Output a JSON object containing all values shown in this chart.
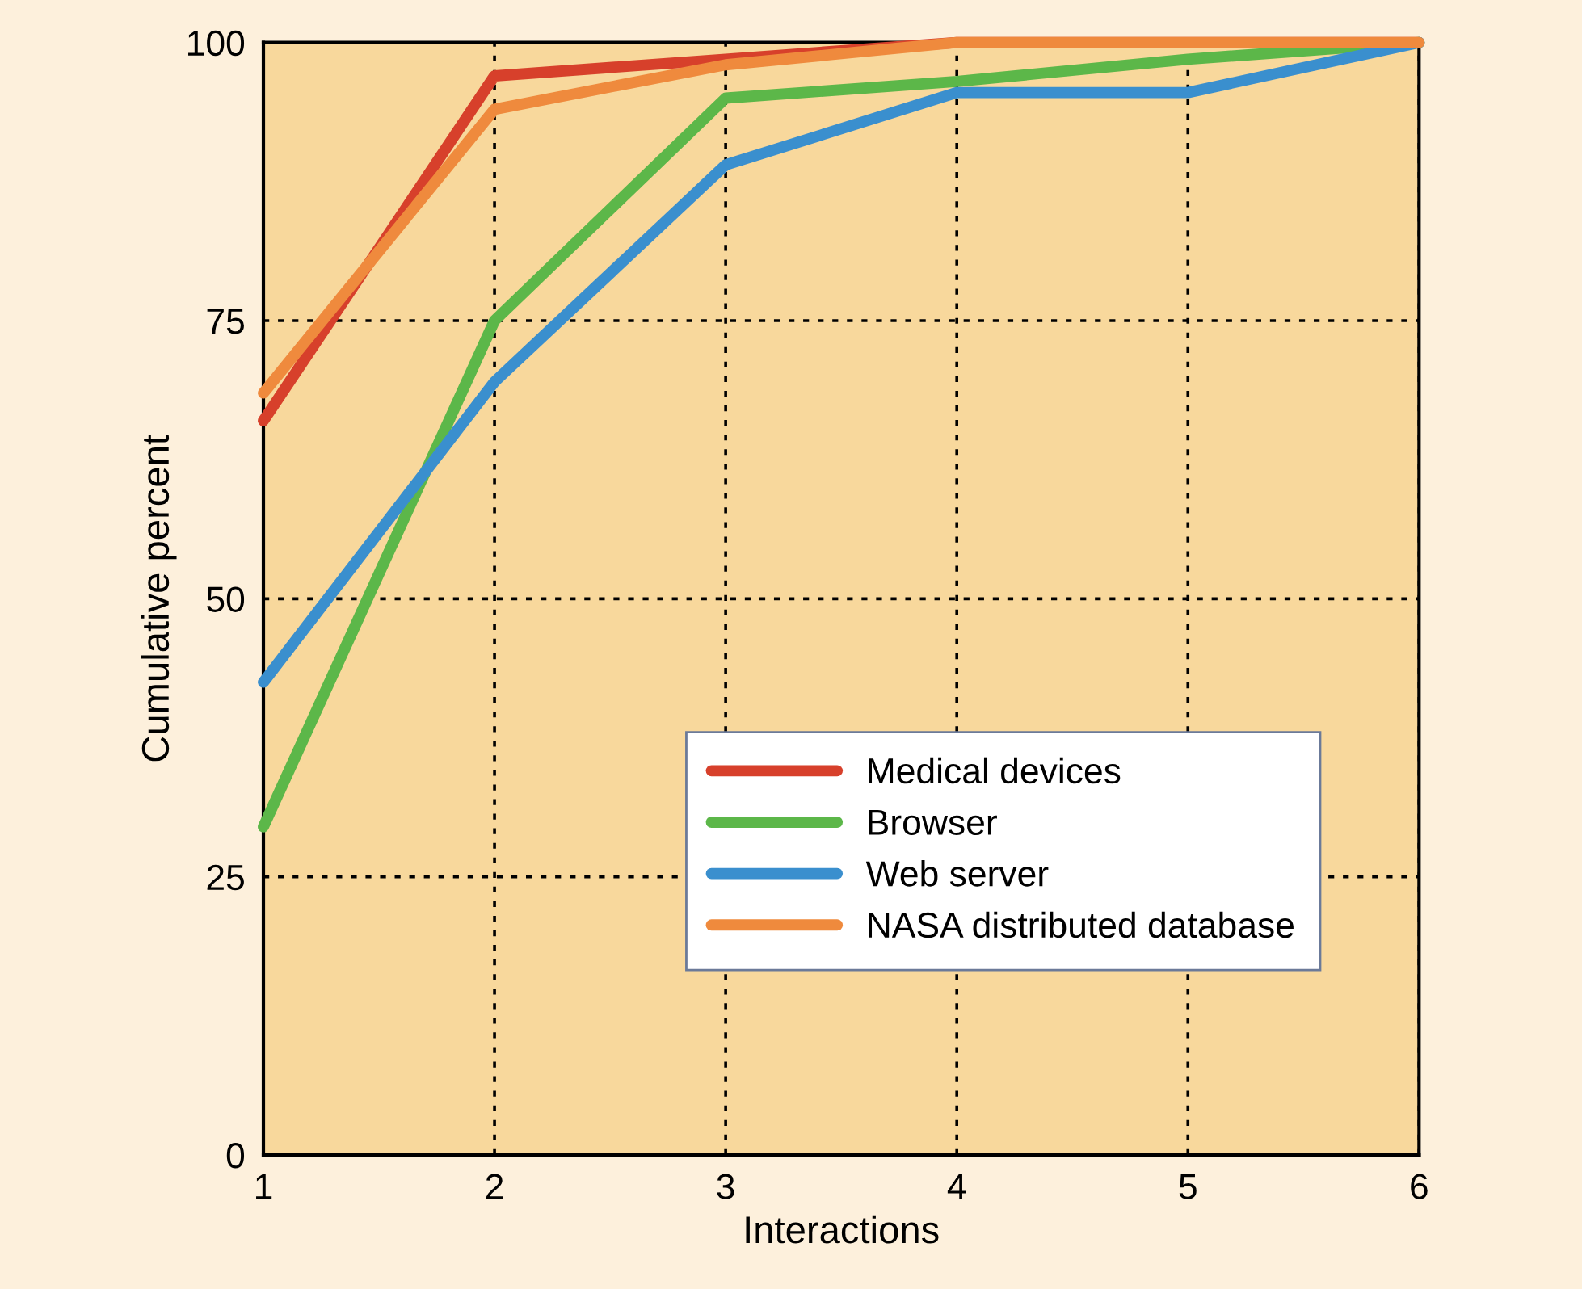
{
  "chart_data": {
    "type": "line",
    "xlabel": "Interactions",
    "ylabel": "Cumulative percent",
    "x": [
      1,
      2,
      3,
      4,
      5,
      6
    ],
    "series": [
      {
        "name": "Medical devices",
        "color": "#d7402b",
        "values": [
          66,
          97,
          98.5,
          100,
          100,
          100
        ]
      },
      {
        "name": "Browser",
        "color": "#5cb749",
        "values": [
          29.5,
          75,
          95,
          96.5,
          98.5,
          100
        ]
      },
      {
        "name": "Web server",
        "color": "#3a8fce",
        "values": [
          42.5,
          69.5,
          89,
          95.5,
          95.5,
          100
        ]
      },
      {
        "name": "NASA distributed database",
        "color": "#ef8a3d",
        "values": [
          68.5,
          94,
          98,
          100,
          100,
          100
        ]
      }
    ],
    "xlim": [
      1,
      6
    ],
    "xticks": [
      1,
      2,
      3,
      4,
      5,
      6
    ],
    "ylim": [
      0,
      100
    ],
    "yticks": [
      0,
      25,
      50,
      75,
      100
    ],
    "grid": true,
    "legend": "bottom right",
    "marker": "none",
    "line_style": "solid"
  }
}
